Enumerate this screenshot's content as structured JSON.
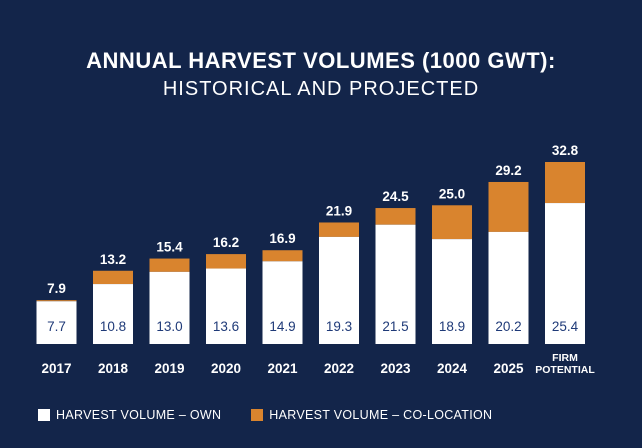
{
  "title": "ANNUAL HARVEST VOLUMES (1000 GWT):",
  "subtitle": "HISTORICAL AND PROJECTED",
  "colors": {
    "background": "#13254a",
    "own": "#ffffff",
    "colocation": "#d9842e",
    "own_label": "#1f3a78"
  },
  "chart_data": {
    "type": "bar",
    "stacked": true,
    "categories": [
      "2017",
      "2018",
      "2019",
      "2020",
      "2021",
      "2022",
      "2023",
      "2024",
      "2025",
      "FIRM\nPOTENTIAL"
    ],
    "series": [
      {
        "name": "HARVEST VOLUME – OWN",
        "values": [
          7.7,
          10.8,
          13.0,
          13.6,
          14.9,
          19.3,
          21.5,
          18.9,
          20.2,
          25.4
        ]
      },
      {
        "name": "HARVEST VOLUME – CO-LOCATION",
        "values": [
          0.2,
          2.4,
          2.4,
          2.6,
          2.0,
          2.6,
          3.0,
          6.1,
          9.0,
          7.4
        ]
      }
    ],
    "totals": [
      "7.9",
      "13.2",
      "15.4",
      "16.2",
      "16.9",
      "21.9",
      "24.5",
      "25.0",
      "29.2",
      "32.8"
    ],
    "own_labels": [
      "7.7",
      "10.8",
      "13.0",
      "13.6",
      "14.9",
      "19.3",
      "21.5",
      "18.9",
      "20.2",
      "25.4"
    ],
    "ylim": [
      0,
      32.8
    ],
    "legend_position": "bottom-left",
    "grid": false
  },
  "legend": {
    "own": "HARVEST VOLUME – OWN",
    "colocation": "HARVEST VOLUME – CO-LOCATION"
  }
}
